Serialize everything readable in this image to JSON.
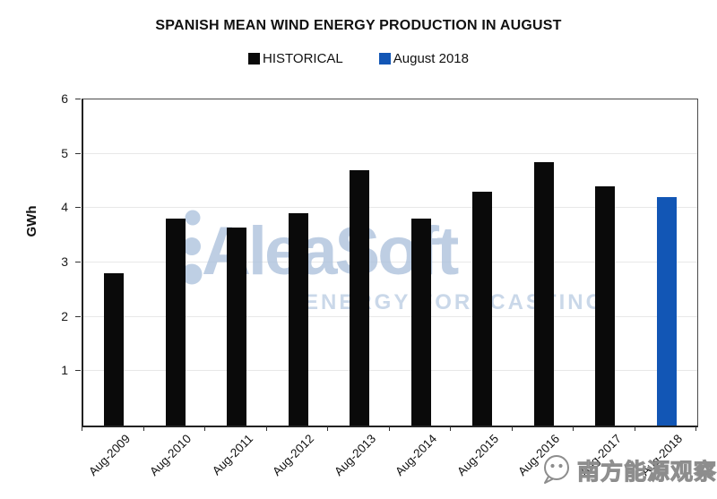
{
  "title": "SPANISH MEAN WIND ENERGY PRODUCTION IN AUGUST",
  "legend": {
    "historical_label": "HISTORICAL",
    "august_label": "August 2018",
    "historical_color": "#0a0a0a",
    "august_color": "#1256b5"
  },
  "watermark": {
    "brand": "AleaSoft",
    "tagline": "ENERGY FORECASTING",
    "color": "#aec3dd"
  },
  "footer_watermark": {
    "text": "南方能源观察",
    "icon": "wechat-face-icon",
    "color": "#8d8d8d"
  },
  "chart_data": {
    "type": "bar",
    "title": "SPANISH MEAN WIND ENERGY PRODUCTION IN AUGUST",
    "xlabel": "",
    "ylabel": "GWh",
    "ylim": [
      0,
      6
    ],
    "yticks": [
      1,
      2,
      3,
      4,
      5,
      6
    ],
    "grid": true,
    "legend_position": "top",
    "categories": [
      "Aug-2009",
      "Aug-2010",
      "Aug-2011",
      "Aug-2012",
      "Aug-2013",
      "Aug-2014",
      "Aug-2015",
      "Aug-2016",
      "Aug-2017",
      "Aug-2018"
    ],
    "series": [
      {
        "name": "HISTORICAL",
        "color": "#0a0a0a",
        "values": [
          2.8,
          3.8,
          3.65,
          3.9,
          4.7,
          3.8,
          4.3,
          4.85,
          4.4,
          null
        ]
      },
      {
        "name": "August 2018",
        "color": "#1256b5",
        "values": [
          null,
          null,
          null,
          null,
          null,
          null,
          null,
          null,
          null,
          4.2
        ]
      }
    ]
  }
}
